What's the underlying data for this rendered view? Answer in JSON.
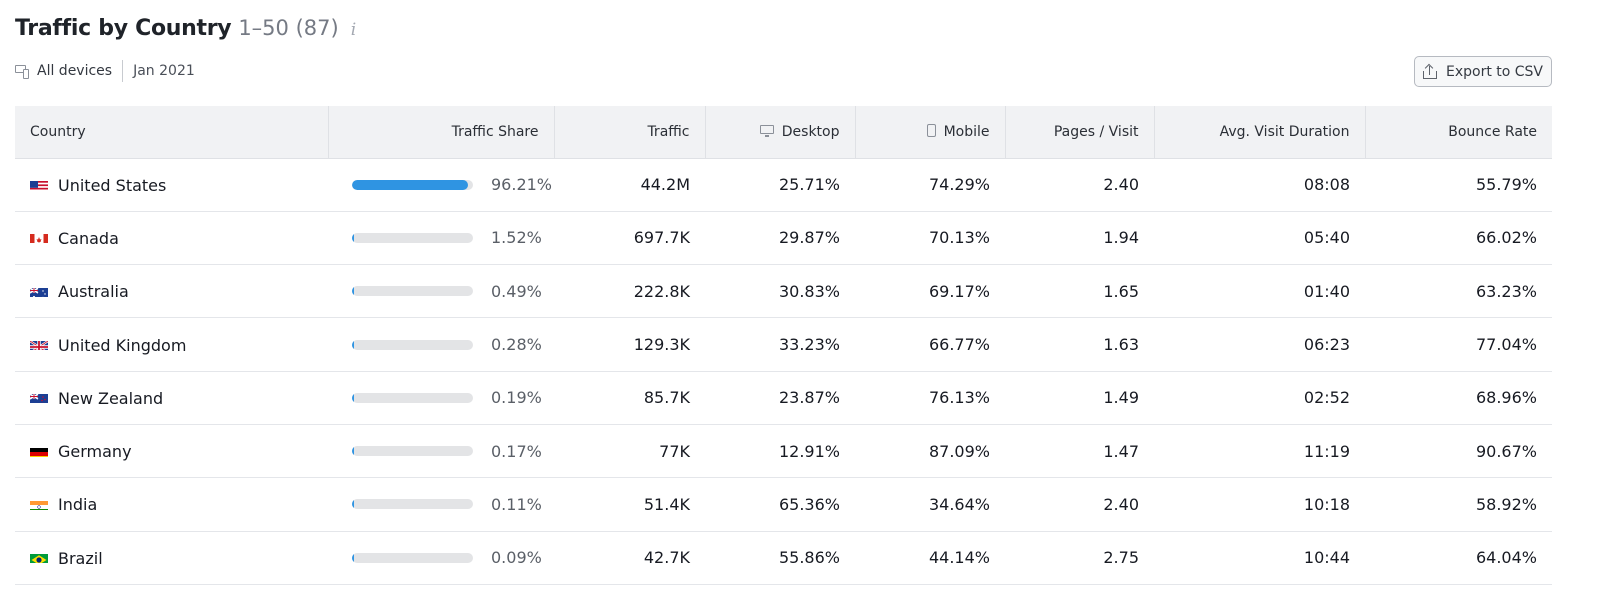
{
  "header": {
    "title": "Traffic by Country",
    "range": "1–50 (87)",
    "info_icon": "info-icon"
  },
  "filters": {
    "devices_label": "All devices",
    "date": "Jan 2021"
  },
  "export": {
    "label": "Export to CSV"
  },
  "columns": {
    "country": "Country",
    "traffic_share": "Traffic Share",
    "traffic": "Traffic",
    "desktop": "Desktop",
    "mobile": "Mobile",
    "pages_visit": "Pages / Visit",
    "avg_visit_duration": "Avg. Visit Duration",
    "bounce_rate": "Bounce Rate"
  },
  "rows": [
    {
      "country": "United States",
      "flag": "us-flag",
      "share_label": "96.21%",
      "share": 96.21,
      "traffic": "44.2M",
      "desktop": "25.71%",
      "mobile": "74.29%",
      "pages": "2.40",
      "duration": "08:08",
      "bounce": "55.79%"
    },
    {
      "country": "Canada",
      "flag": "ca-flag",
      "share_label": "1.52%",
      "share": 1.52,
      "traffic": "697.7K",
      "desktop": "29.87%",
      "mobile": "70.13%",
      "pages": "1.94",
      "duration": "05:40",
      "bounce": "66.02%"
    },
    {
      "country": "Australia",
      "flag": "au-flag",
      "share_label": "0.49%",
      "share": 0.49,
      "traffic": "222.8K",
      "desktop": "30.83%",
      "mobile": "69.17%",
      "pages": "1.65",
      "duration": "01:40",
      "bounce": "63.23%"
    },
    {
      "country": "United Kingdom",
      "flag": "gb-flag",
      "share_label": "0.28%",
      "share": 0.28,
      "traffic": "129.3K",
      "desktop": "33.23%",
      "mobile": "66.77%",
      "pages": "1.63",
      "duration": "06:23",
      "bounce": "77.04%"
    },
    {
      "country": "New Zealand",
      "flag": "nz-flag",
      "share_label": "0.19%",
      "share": 0.19,
      "traffic": "85.7K",
      "desktop": "23.87%",
      "mobile": "76.13%",
      "pages": "1.49",
      "duration": "02:52",
      "bounce": "68.96%"
    },
    {
      "country": "Germany",
      "flag": "de-flag",
      "share_label": "0.17%",
      "share": 0.17,
      "traffic": "77K",
      "desktop": "12.91%",
      "mobile": "87.09%",
      "pages": "1.47",
      "duration": "11:19",
      "bounce": "90.67%"
    },
    {
      "country": "India",
      "flag": "in-flag",
      "share_label": "0.11%",
      "share": 0.11,
      "traffic": "51.4K",
      "desktop": "65.36%",
      "mobile": "34.64%",
      "pages": "2.40",
      "duration": "10:18",
      "bounce": "58.92%"
    },
    {
      "country": "Brazil",
      "flag": "br-flag",
      "share_label": "0.09%",
      "share": 0.09,
      "traffic": "42.7K",
      "desktop": "55.86%",
      "mobile": "44.14%",
      "pages": "2.75",
      "duration": "10:44",
      "bounce": "64.04%"
    }
  ],
  "colors": {
    "share_fill": "#2f94e2",
    "share_track": "#e3e4e6",
    "header_bg": "#f1f2f4"
  }
}
